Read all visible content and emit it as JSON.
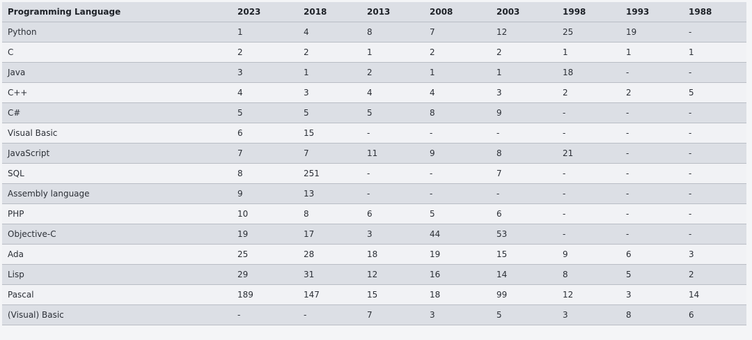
{
  "table": {
    "header": [
      "Programming Language",
      "2023",
      "2018",
      "2013",
      "2008",
      "2003",
      "1998",
      "1993",
      "1988"
    ],
    "rows": [
      [
        "Python",
        1,
        4,
        8,
        7,
        12,
        25,
        19,
        "-"
      ],
      [
        "C",
        2,
        2,
        1,
        2,
        2,
        1,
        1,
        1
      ],
      [
        "Java",
        3,
        1,
        2,
        1,
        1,
        18,
        "-",
        "-"
      ],
      [
        "C++",
        4,
        3,
        4,
        4,
        3,
        2,
        2,
        5
      ],
      [
        "C#",
        5,
        5,
        5,
        8,
        9,
        "-",
        "-",
        "-"
      ],
      [
        "Visual Basic",
        6,
        15,
        "-",
        "-",
        "-",
        "-",
        "-",
        "-"
      ],
      [
        "JavaScript",
        7,
        7,
        11,
        9,
        8,
        21,
        "-",
        "-"
      ],
      [
        "SQL",
        8,
        251,
        "-",
        "-",
        7,
        "-",
        "-",
        "-"
      ],
      [
        "Assembly language",
        9,
        13,
        "-",
        "-",
        "-",
        "-",
        "-",
        "-"
      ],
      [
        "PHP",
        10,
        8,
        6,
        5,
        6,
        "-",
        "-",
        "-"
      ],
      [
        "Objective-C",
        19,
        17,
        3,
        44,
        53,
        "-",
        "-",
        "-"
      ],
      [
        "Ada",
        25,
        28,
        18,
        19,
        15,
        9,
        6,
        3
      ],
      [
        "Lisp",
        29,
        31,
        12,
        16,
        14,
        8,
        5,
        2
      ],
      [
        "Pascal",
        189,
        147,
        15,
        18,
        99,
        12,
        3,
        14
      ],
      [
        "(Visual) Basic",
        "-",
        "-",
        7,
        3,
        5,
        3,
        8,
        6
      ]
    ]
  }
}
